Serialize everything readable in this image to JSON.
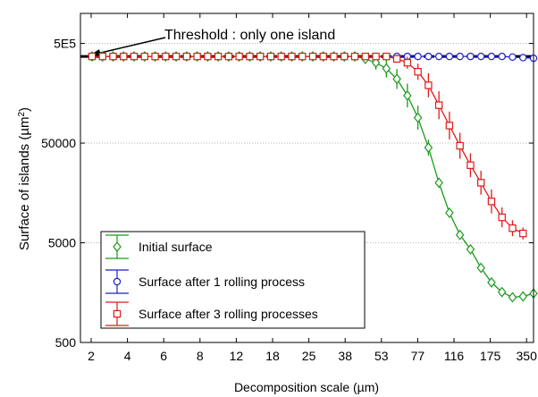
{
  "chart_data": {
    "type": "line",
    "xlabel": "Decomposition scale (µm)",
    "ylabel_main": "Surface of islands (µm",
    "ylabel_sup": "2",
    "ylabel_close": ")",
    "yscale": "log",
    "ylim": [
      500,
      1000000
    ],
    "y_ticks": [
      {
        "value": 500,
        "label": "500"
      },
      {
        "value": 5000,
        "label": "5000"
      },
      {
        "value": 50000,
        "label": "50000"
      },
      {
        "value": 500000,
        "label": "5E5"
      }
    ],
    "x_tick_labels": [
      "2",
      "4",
      "6",
      "8",
      "12",
      "18",
      "25",
      "38",
      "53",
      "77",
      "116",
      "175",
      "350"
    ],
    "grid": "horizontal-dotted",
    "legend_position": "bottom-left",
    "threshold": {
      "value": 370000,
      "label": "Threshold : only one island"
    },
    "series": [
      {
        "name": "Initial surface",
        "marker": "diamond",
        "color": "#1a9a1a",
        "values": [
          370000,
          370000,
          370000,
          370000,
          370000,
          370000,
          370000,
          370000,
          370000,
          370000,
          370000,
          370000,
          370000,
          370000,
          370000,
          370000,
          370000,
          370000,
          370000,
          370000,
          370000,
          370000,
          370000,
          370000,
          370000,
          370000,
          350000,
          320000,
          280000,
          220000,
          150000,
          90000,
          45000,
          20000,
          10000,
          6000,
          4300,
          2800,
          2000,
          1600,
          1420,
          1450,
          1550
        ],
        "errors": [
          0,
          0,
          0,
          0,
          0,
          0,
          0,
          0,
          0,
          0,
          0,
          0,
          0,
          0,
          0,
          0,
          0,
          0,
          0,
          0,
          0,
          0,
          0,
          0,
          0,
          0,
          0.05,
          0.07,
          0.09,
          0.1,
          0.12,
          0.12,
          0.08,
          0.05,
          0.04,
          0,
          0,
          0,
          0,
          0,
          0,
          0,
          0
        ]
      },
      {
        "name": "Surface after 1 rolling process",
        "marker": "circle",
        "color": "#1f1fcf",
        "values": [
          370000,
          370000,
          370000,
          370000,
          370000,
          370000,
          370000,
          370000,
          370000,
          370000,
          370000,
          370000,
          370000,
          370000,
          370000,
          370000,
          370000,
          370000,
          370000,
          370000,
          370000,
          370000,
          370000,
          370000,
          370000,
          370000,
          370000,
          370000,
          370000,
          370000,
          370000,
          370000,
          370000,
          370000,
          370000,
          370000,
          370000,
          370000,
          370000,
          370000,
          365000,
          360000,
          355000
        ],
        "errors": []
      },
      {
        "name": "Surface after 3 rolling processes",
        "marker": "square",
        "color": "#e01a1a",
        "values": [
          370000,
          370000,
          370000,
          370000,
          370000,
          370000,
          370000,
          370000,
          370000,
          370000,
          370000,
          370000,
          370000,
          370000,
          370000,
          370000,
          370000,
          370000,
          370000,
          370000,
          370000,
          370000,
          370000,
          370000,
          370000,
          370000,
          370000,
          370000,
          370000,
          350000,
          320000,
          260000,
          190000,
          120000,
          75000,
          47000,
          30000,
          20000,
          13000,
          9000,
          7000,
          6200
        ],
        "errors": [
          0,
          0,
          0,
          0,
          0,
          0,
          0,
          0,
          0,
          0,
          0,
          0,
          0,
          0,
          0,
          0,
          0,
          0,
          0,
          0,
          0,
          0,
          0,
          0,
          0,
          0,
          0,
          0,
          0,
          0.04,
          0.06,
          0.08,
          0.12,
          0.14,
          0.14,
          0.13,
          0.12,
          0.12,
          0.12,
          0.1,
          0.08,
          0.06
        ]
      }
    ]
  }
}
